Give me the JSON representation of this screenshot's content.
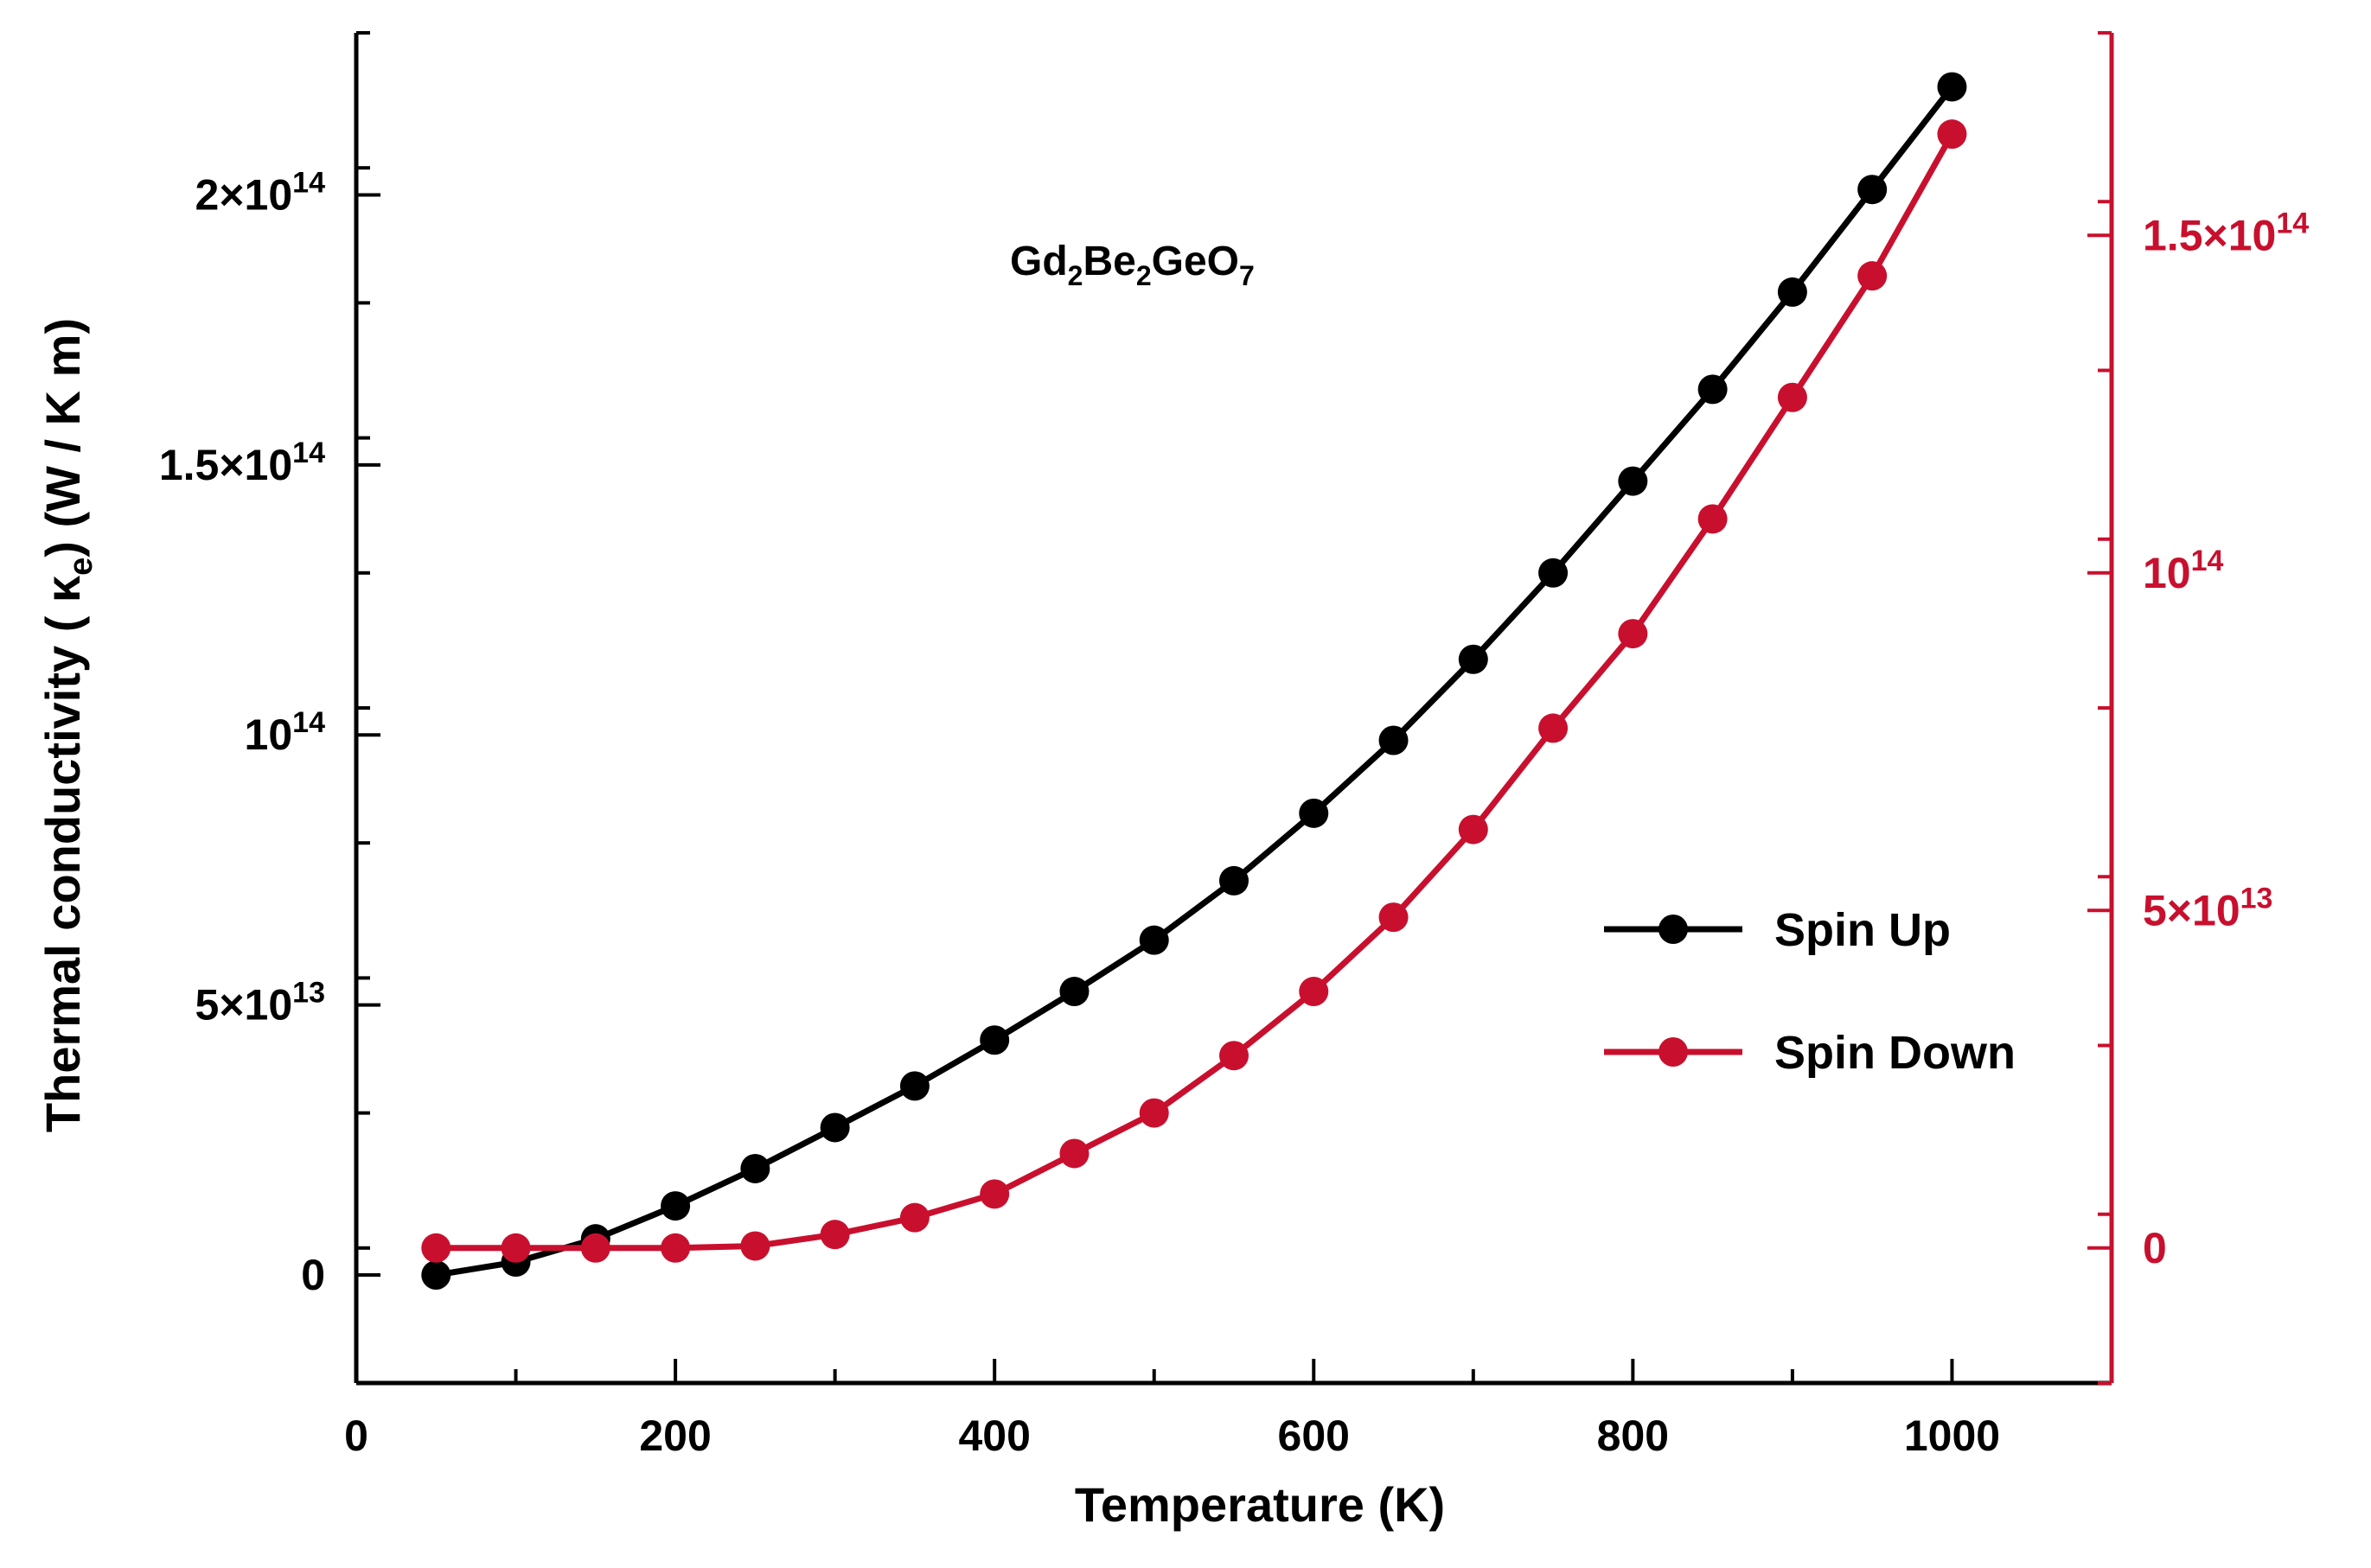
{
  "chart_data": {
    "type": "line",
    "annotation": {
      "formula": "Gd₂Be₂GeO₇",
      "parts": [
        "Gd",
        "2",
        "Be",
        "2",
        "GeO",
        "7"
      ]
    },
    "xlabel": "Temperature (K)",
    "ylabel_left": "Thermal conductivity ( κₑ)  (W / K m)",
    "ylabel_parts": {
      "pre": "Thermal conductivity ( κ",
      "sub": "e",
      "post": ")  (W / K m)"
    },
    "xlim": [
      0,
      1100
    ],
    "ylim_left": [
      -20000000000000.0,
      230000000000000.0
    ],
    "ylim_right": [
      -20000000000000.0,
      180000000000000.0
    ],
    "x_ticks": [
      0,
      200,
      400,
      600,
      800,
      1000
    ],
    "x_tick_labels": [
      "0",
      "200",
      "400",
      "600",
      "800",
      "1000"
    ],
    "y_left_ticks": [
      {
        "value": 0,
        "base": "0",
        "exp": ""
      },
      {
        "value": 50000000000000.0,
        "base": "5×10",
        "exp": "13"
      },
      {
        "value": 100000000000000.0,
        "base": "10",
        "exp": "14"
      },
      {
        "value": 150000000000000.0,
        "base": "1.5×10",
        "exp": "14"
      },
      {
        "value": 200000000000000.0,
        "base": "2×10",
        "exp": "14"
      }
    ],
    "y_right_ticks": [
      {
        "value": 0,
        "base": "0",
        "exp": ""
      },
      {
        "value": 50000000000000.0,
        "base": "5×10",
        "exp": "13"
      },
      {
        "value": 100000000000000.0,
        "base": "10",
        "exp": "14"
      },
      {
        "value": 150000000000000.0,
        "base": "1.5×10",
        "exp": "14"
      }
    ],
    "x": [
      50,
      100,
      150,
      200,
      250,
      300,
      350,
      400,
      450,
      500,
      550,
      600,
      650,
      700,
      750,
      800,
      850,
      900,
      950,
      1000
    ],
    "series": [
      {
        "name": "Spin Up",
        "axis": "left",
        "color": "#000000",
        "values": [
          0.0,
          2400000000000.0,
          6700000000000.0,
          12800000000000.0,
          19700000000000.0,
          27300000000000.0,
          35000000000000.0,
          43500000000000.0,
          52500000000000.0,
          62000000000000.0,
          73000000000000.0,
          85500000000000.0,
          99000000000000.0,
          114000000000000.0,
          130000000000000.0,
          147000000000000.0,
          164000000000000.0,
          182000000000000.0,
          201000000000000.0,
          220000000000000.0
        ]
      },
      {
        "name": "Spin Down",
        "axis": "right",
        "color": "#c8102e",
        "values": [
          0.0,
          0.0,
          0.0,
          0.0,
          300000000000.0,
          2000000000000.0,
          4500000000000.0,
          8000000000000.0,
          14000000000000.0,
          20000000000000.0,
          28500000000000.0,
          38000000000000.0,
          49000000000000.0,
          62000000000000.0,
          77000000000000.0,
          91000000000000.0,
          108000000000000.0,
          126000000000000.0,
          144000000000000.0,
          165000000000000.0
        ]
      }
    ],
    "legend": [
      {
        "label": "Spin Up",
        "color": "#000000"
      },
      {
        "label": "Spin Down",
        "color": "#c8102e"
      }
    ],
    "legend_position": "middle-right"
  }
}
